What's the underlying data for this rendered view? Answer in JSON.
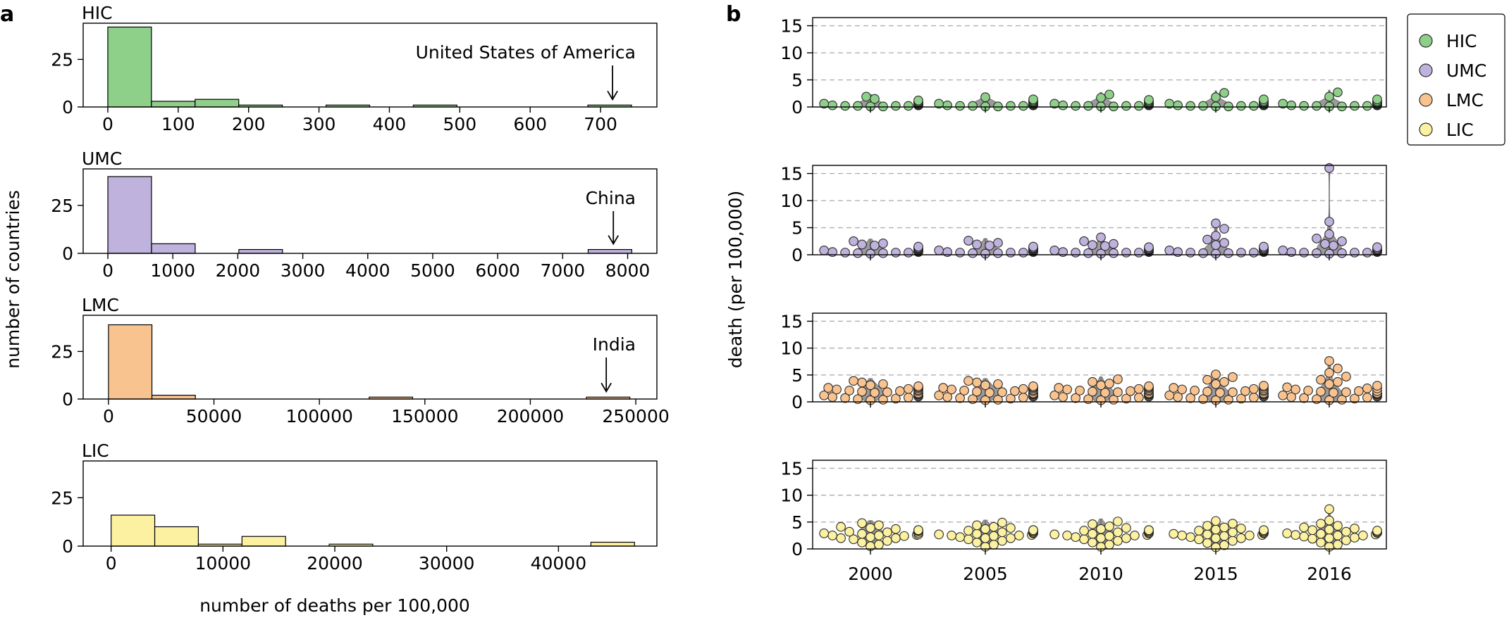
{
  "panel_labels": [
    "a",
    "b"
  ],
  "colors": {
    "HIC": "#8ecf8a",
    "UMC": "#bfb2dc",
    "LMC": "#f9c38f",
    "LIC": "#fbf1a1",
    "violin": "#9a9a9a",
    "grid": "#b0b0b0"
  },
  "chart_data": [
    {
      "type": "bar",
      "title": "HIC",
      "bins": [
        [
          0,
          62
        ],
        [
          62,
          124
        ],
        [
          124,
          186
        ],
        [
          186,
          248
        ],
        [
          248,
          310
        ],
        [
          310,
          372
        ],
        [
          372,
          434
        ],
        [
          434,
          496
        ],
        [
          496,
          558
        ],
        [
          558,
          620
        ],
        [
          620,
          682
        ],
        [
          682,
          744
        ]
      ],
      "values": [
        42,
        3,
        4,
        1,
        0,
        1,
        0,
        1,
        0,
        0,
        0,
        1
      ],
      "xlim": [
        -35,
        780
      ],
      "xticks": [
        0,
        100,
        200,
        300,
        400,
        500,
        600,
        700
      ],
      "ylim": [
        0,
        44
      ],
      "yticks": [
        0,
        25
      ],
      "annotation": {
        "text": "United States of America",
        "x": 717
      }
    },
    {
      "type": "bar",
      "title": "UMC",
      "bins": [
        [
          0,
          672
        ],
        [
          672,
          1344
        ],
        [
          1344,
          2016
        ],
        [
          2016,
          2688
        ],
        [
          2688,
          3360
        ],
        [
          3360,
          4032
        ],
        [
          4032,
          4704
        ],
        [
          4704,
          5376
        ],
        [
          5376,
          6048
        ],
        [
          6048,
          6720
        ],
        [
          6720,
          7392
        ],
        [
          7392,
          8064
        ]
      ],
      "values": [
        40,
        5,
        0,
        2,
        0,
        0,
        0,
        0,
        0,
        0,
        0,
        2
      ],
      "xlim": [
        -380,
        8450
      ],
      "xticks": [
        0,
        1000,
        2000,
        3000,
        4000,
        5000,
        6000,
        7000,
        8000
      ],
      "ylim": [
        0,
        44
      ],
      "yticks": [
        0,
        25
      ],
      "annotation": {
        "text": "China",
        "x": 7780
      }
    },
    {
      "type": "bar",
      "title": "LMC",
      "bins": [
        [
          0,
          20600
        ],
        [
          20600,
          41200
        ],
        [
          41200,
          61800
        ],
        [
          61800,
          82400
        ],
        [
          82400,
          103000
        ],
        [
          103000,
          123600
        ],
        [
          123600,
          144200
        ],
        [
          144200,
          164800
        ],
        [
          164800,
          185400
        ],
        [
          185400,
          206000
        ],
        [
          206000,
          226600
        ],
        [
          226600,
          247200
        ]
      ],
      "values": [
        39,
        2,
        0,
        0,
        0,
        0,
        1,
        0,
        0,
        0,
        0,
        1
      ],
      "xlim": [
        -12000,
        260000
      ],
      "xticks": [
        0,
        50000,
        100000,
        150000,
        200000,
        250000
      ],
      "ylim": [
        0,
        44
      ],
      "yticks": [
        0,
        25
      ],
      "annotation": {
        "text": "India",
        "x": 236000
      }
    },
    {
      "type": "bar",
      "title": "LIC",
      "bins": [
        [
          0,
          3900
        ],
        [
          3900,
          7800
        ],
        [
          7800,
          11700
        ],
        [
          11700,
          15600
        ],
        [
          15600,
          19500
        ],
        [
          19500,
          23400
        ],
        [
          23400,
          27300
        ],
        [
          27300,
          31200
        ],
        [
          31200,
          35100
        ],
        [
          35100,
          39000
        ],
        [
          39000,
          42900
        ],
        [
          42900,
          46800
        ]
      ],
      "values": [
        16,
        10,
        1,
        5,
        0,
        1,
        0,
        0,
        0,
        0,
        0,
        2
      ],
      "xlim": [
        -2500,
        48800
      ],
      "xticks": [
        0,
        10000,
        20000,
        30000,
        40000
      ],
      "ylim": [
        0,
        44
      ],
      "yticks": [
        0,
        25
      ],
      "xlabel": "number of deaths per 100,000"
    },
    {
      "type": "scatter",
      "subtype": "violin-swarm",
      "ylabel": "death (per 100,000)",
      "categories": [
        "2000",
        "2005",
        "2010",
        "2015",
        "2016"
      ],
      "ylim": [
        0,
        16.5
      ],
      "yticks": [
        0,
        5,
        10,
        15
      ],
      "grid": true,
      "legend": {
        "placement": "outside-top-right",
        "entries": [
          "HIC",
          "UMC",
          "LMC",
          "LIC"
        ]
      },
      "series": [
        {
          "name": "HIC",
          "values": [
            [
              0.1,
              0.1,
              0.2,
              0.2,
              0.2,
              0.3,
              0.3,
              0.3,
              0.4,
              0.4,
              0.4,
              0.5,
              0.5,
              0.5,
              0.6,
              0.6,
              0.7,
              0.7,
              0.8,
              0.9,
              1.0,
              1.2,
              1.5,
              1.9,
              0.3,
              0.4,
              0.2,
              0.6
            ],
            [
              0.1,
              0.1,
              0.2,
              0.2,
              0.2,
              0.3,
              0.3,
              0.3,
              0.4,
              0.4,
              0.4,
              0.5,
              0.5,
              0.5,
              0.6,
              0.6,
              0.7,
              0.7,
              0.8,
              0.9,
              1.0,
              1.2,
              1.4,
              1.8,
              0.3,
              0.4,
              0.2,
              0.6
            ],
            [
              0.1,
              0.1,
              0.2,
              0.2,
              0.2,
              0.3,
              0.3,
              0.3,
              0.4,
              0.4,
              0.4,
              0.5,
              0.5,
              0.5,
              0.6,
              0.6,
              0.7,
              0.7,
              0.8,
              0.9,
              1.1,
              1.3,
              1.7,
              2.3,
              0.3,
              0.4,
              0.2,
              0.6
            ],
            [
              0.1,
              0.1,
              0.2,
              0.2,
              0.2,
              0.3,
              0.3,
              0.3,
              0.4,
              0.4,
              0.4,
              0.5,
              0.5,
              0.5,
              0.6,
              0.6,
              0.7,
              0.7,
              0.8,
              0.9,
              1.1,
              1.4,
              1.8,
              2.6,
              0.3,
              0.4,
              0.2,
              0.6
            ],
            [
              0.1,
              0.1,
              0.2,
              0.2,
              0.2,
              0.3,
              0.3,
              0.3,
              0.4,
              0.4,
              0.4,
              0.5,
              0.5,
              0.5,
              0.6,
              0.6,
              0.7,
              0.7,
              0.8,
              0.9,
              1.1,
              1.4,
              1.9,
              2.7,
              0.3,
              0.4,
              0.2,
              0.6
            ]
          ]
        },
        {
          "name": "UMC",
          "values": [
            [
              0.2,
              0.3,
              0.3,
              0.4,
              0.4,
              0.5,
              0.5,
              0.6,
              0.7,
              0.8,
              0.9,
              1.0,
              1.1,
              1.2,
              1.3,
              1.5,
              1.7,
              1.9,
              2.1,
              2.5,
              0.6,
              0.8,
              1.0,
              0.4
            ],
            [
              0.2,
              0.3,
              0.3,
              0.4,
              0.4,
              0.5,
              0.5,
              0.6,
              0.7,
              0.8,
              0.9,
              1.0,
              1.1,
              1.2,
              1.3,
              1.5,
              1.7,
              1.9,
              2.2,
              2.6,
              0.6,
              0.8,
              1.0,
              0.4
            ],
            [
              0.2,
              0.3,
              0.3,
              0.4,
              0.4,
              0.5,
              0.5,
              0.6,
              0.7,
              0.8,
              0.9,
              1.0,
              1.1,
              1.2,
              1.4,
              1.6,
              1.8,
              2.0,
              2.5,
              3.2,
              0.6,
              0.8,
              1.0,
              0.4
            ],
            [
              0.2,
              0.3,
              0.3,
              0.4,
              0.4,
              0.5,
              0.5,
              0.6,
              0.7,
              0.8,
              0.9,
              1.0,
              1.1,
              1.3,
              1.5,
              1.8,
              2.2,
              2.8,
              3.5,
              4.8,
              0.6,
              0.8,
              5.8,
              0.4
            ],
            [
              0.2,
              0.3,
              0.3,
              0.4,
              0.4,
              0.5,
              0.5,
              0.6,
              0.7,
              0.8,
              0.9,
              1.0,
              1.2,
              1.4,
              1.7,
              2.0,
              2.5,
              3.0,
              3.8,
              6.1,
              0.6,
              0.8,
              16.0,
              0.4
            ]
          ]
        },
        {
          "name": "LMC",
          "values": [
            [
              0.3,
              0.4,
              0.5,
              0.6,
              0.7,
              0.8,
              0.9,
              1.0,
              1.1,
              1.2,
              1.3,
              1.4,
              1.5,
              1.6,
              1.7,
              1.8,
              1.9,
              2.0,
              2.1,
              2.2,
              2.3,
              2.4,
              2.5,
              2.6,
              2.7,
              2.9,
              3.1,
              3.3,
              3.6,
              3.9,
              1.0,
              1.5,
              2.0,
              2.5
            ],
            [
              0.3,
              0.4,
              0.5,
              0.6,
              0.7,
              0.8,
              0.9,
              1.0,
              1.1,
              1.2,
              1.3,
              1.4,
              1.5,
              1.6,
              1.7,
              1.8,
              1.9,
              2.0,
              2.1,
              2.2,
              2.3,
              2.4,
              2.5,
              2.6,
              2.7,
              2.9,
              3.1,
              3.3,
              3.6,
              3.9,
              1.0,
              1.5,
              2.0,
              2.5
            ],
            [
              0.3,
              0.4,
              0.5,
              0.6,
              0.7,
              0.8,
              0.9,
              1.0,
              1.1,
              1.2,
              1.3,
              1.4,
              1.5,
              1.6,
              1.7,
              1.8,
              1.9,
              2.0,
              2.1,
              2.2,
              2.3,
              2.4,
              2.5,
              2.6,
              2.7,
              2.9,
              3.1,
              3.4,
              3.7,
              4.2,
              1.0,
              1.5,
              2.0,
              2.5
            ],
            [
              0.3,
              0.4,
              0.5,
              0.6,
              0.7,
              0.8,
              0.9,
              1.0,
              1.1,
              1.2,
              1.3,
              1.4,
              1.5,
              1.6,
              1.7,
              1.8,
              1.9,
              2.0,
              2.1,
              2.2,
              2.3,
              2.4,
              2.6,
              2.8,
              3.0,
              3.3,
              3.7,
              4.1,
              4.6,
              5.1,
              1.0,
              1.5,
              2.0,
              2.5
            ],
            [
              0.3,
              0.4,
              0.5,
              0.6,
              0.7,
              0.8,
              0.9,
              1.0,
              1.1,
              1.2,
              1.3,
              1.4,
              1.5,
              1.6,
              1.7,
              1.8,
              1.9,
              2.0,
              2.1,
              2.3,
              2.5,
              2.7,
              3.0,
              3.3,
              3.7,
              4.1,
              4.7,
              5.4,
              6.2,
              7.6,
              1.0,
              1.5,
              2.0,
              2.5
            ]
          ]
        },
        {
          "name": "LIC",
          "values": [
            [
              0.5,
              0.8,
              1.2,
              1.5,
              1.8,
              2.0,
              2.2,
              2.4,
              2.5,
              2.6,
              2.7,
              2.8,
              2.9,
              3.0,
              3.1,
              3.2,
              3.3,
              3.4,
              3.5,
              3.7,
              3.9,
              4.1,
              4.4,
              4.8,
              3.0,
              2.5,
              3.5,
              2.0
            ],
            [
              0.4,
              0.8,
              1.2,
              1.5,
              1.8,
              2.0,
              2.2,
              2.4,
              2.5,
              2.6,
              2.7,
              2.8,
              2.9,
              3.0,
              3.1,
              3.2,
              3.3,
              3.4,
              3.5,
              3.7,
              3.9,
              4.1,
              4.4,
              4.9,
              3.0,
              2.5,
              3.5,
              2.0
            ],
            [
              0.4,
              0.8,
              1.2,
              1.5,
              1.8,
              2.0,
              2.2,
              2.4,
              2.5,
              2.6,
              2.7,
              2.8,
              2.9,
              3.0,
              3.1,
              3.2,
              3.3,
              3.4,
              3.5,
              3.7,
              3.9,
              4.2,
              4.6,
              5.1,
              3.0,
              2.5,
              3.5,
              2.0
            ],
            [
              0.3,
              0.7,
              1.1,
              1.5,
              1.8,
              2.0,
              2.2,
              2.4,
              2.5,
              2.6,
              2.7,
              2.8,
              2.9,
              3.0,
              3.1,
              3.2,
              3.3,
              3.4,
              3.6,
              3.8,
              4.0,
              4.3,
              4.7,
              5.2,
              3.0,
              2.5,
              3.5,
              2.0
            ],
            [
              0.4,
              0.8,
              1.2,
              1.6,
              1.9,
              2.1,
              2.3,
              2.5,
              2.6,
              2.7,
              2.8,
              2.9,
              3.0,
              3.1,
              3.2,
              3.3,
              3.4,
              3.6,
              3.8,
              4.0,
              4.3,
              4.7,
              5.3,
              7.4,
              3.0,
              2.5,
              3.5,
              2.0
            ]
          ]
        }
      ]
    }
  ],
  "axes": {
    "a_ylabel": "number of countries"
  }
}
